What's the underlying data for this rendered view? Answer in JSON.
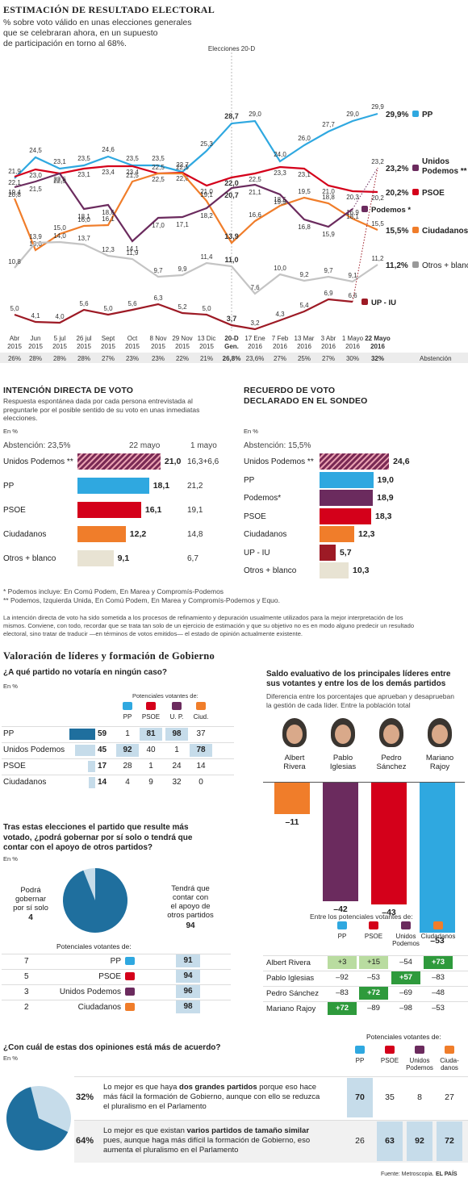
{
  "header": {
    "title": "ESTIMACIÓN DE RESULTADO ELECTORAL",
    "subtitle": [
      "% sobre voto válido en unas elecciones generales",
      "que se  celebraran ahora, en un supuesto",
      "de participación en torno al 68%."
    ]
  },
  "chart_data": [
    {
      "type": "line",
      "title": "ESTIMACIÓN DE RESULTADO ELECTORAL",
      "categories": [
        "Abr 2015",
        "Jun 2015",
        "5 jul 2015",
        "26 jul 2015",
        "Sept 2015",
        "Oct 2015",
        "8 Nov 2015",
        "29 Nov 2015",
        "13 Dic 2015",
        "20-D Gen.",
        "17 Ene 2016",
        "7 Feb 2016",
        "13 Mar 2016",
        "3 Abr 2016",
        "1 Mayo 2016",
        "22 Mayo 2016"
      ],
      "annotation": "Elecciones 20-D",
      "series": [
        {
          "name": "PP",
          "color": "#2fa8e0",
          "values": [
            21.9,
            24.5,
            23.1,
            23.5,
            24.6,
            23.5,
            23.5,
            22.7,
            25.3,
            28.7,
            29.0,
            24.0,
            26.0,
            27.7,
            29.0,
            29.9
          ],
          "end_label": "29,9%"
        },
        {
          "name": "PSOE",
          "color": "#d4001a",
          "values": [
            22.1,
            23.0,
            22.5,
            23.1,
            23.4,
            23.4,
            22.5,
            22.6,
            21.0,
            22.0,
            22.5,
            23.3,
            23.1,
            21.0,
            20.3,
            20.2
          ],
          "end_label": "20,2%"
        },
        {
          "name": "Ciudadanos",
          "color": "#f07d2a",
          "values": [
            19.4,
            13.0,
            15.0,
            16.0,
            16.1,
            21.5,
            22.5,
            22.5,
            19.1,
            13.9,
            16.6,
            18.5,
            19.5,
            18.8,
            16.9,
            15.5
          ],
          "end_label": "15,5%"
        },
        {
          "name": "Podemos",
          "color": "#6b2b5e",
          "values": [
            20.8,
            21.5,
            22.5,
            18.1,
            18.6,
            14.1,
            17.0,
            17.1,
            18.2,
            20.7,
            21.1,
            19.9,
            16.8,
            15.9,
            18.1,
            null
          ],
          "end_label": ""
        },
        {
          "name": "Unidos Podemos",
          "color": "#6b2b5e",
          "values": [
            null,
            null,
            null,
            null,
            null,
            null,
            null,
            null,
            null,
            null,
            null,
            null,
            null,
            null,
            null,
            23.2
          ],
          "end_label": "23,2%"
        },
        {
          "name": "Otros + blanco",
          "color": "#c4c4c4",
          "values": [
            10.8,
            13.9,
            14.0,
            13.7,
            12.3,
            11.9,
            9.7,
            9.9,
            11.4,
            11.0,
            7.6,
            10.0,
            9.2,
            9.7,
            9.1,
            11.2
          ],
          "end_label": "11,2%"
        },
        {
          "name": "UP - IU",
          "color": "#9d1a25",
          "values": [
            5.0,
            4.1,
            4.0,
            5.6,
            5.0,
            5.6,
            6.3,
            5.2,
            5.0,
            3.7,
            3.2,
            4.3,
            5.4,
            6.9,
            6.6,
            null
          ],
          "end_label": ""
        }
      ],
      "abstention_label": "Abstención",
      "abstention": [
        "26%",
        "28%",
        "28%",
        "28%",
        "27%",
        "23%",
        "23%",
        "22%",
        "21%",
        "26,8%",
        "23,6%",
        "27%",
        "25%",
        "27%",
        "30%",
        "32%"
      ]
    }
  ],
  "legend_labels": {
    "pp": "PP",
    "unidos": "Unidos",
    "unidos2": "Podemos **",
    "psoe": "PSOE",
    "podemos": "Podemos *",
    "ciud": "Ciudadanos",
    "otros": "Otros + blanco",
    "upiu": "UP - IU"
  },
  "intencion": {
    "title": "INTENCIÓN DIRECTA DE VOTO",
    "desc": [
      "Respuesta espontánea dada por cada persona entrevistada al",
      "preguntarle por el posible sentido de su voto en unas inmediatas",
      "elecciones."
    ],
    "unit": "En %",
    "abst": "Abstención: 23,5%",
    "col1": "22 mayo",
    "col2": "1 mayo",
    "rows": [
      {
        "name": "Unidos Podemos **",
        "value": "21,0",
        "v": 21.0,
        "prev": "16,3+6,6",
        "color": "hatch"
      },
      {
        "name": "PP",
        "value": "18,1",
        "v": 18.1,
        "prev": "21,2",
        "color": "#2fa8e0"
      },
      {
        "name": "PSOE",
        "value": "16,1",
        "v": 16.1,
        "prev": "19,1",
        "color": "#d4001a"
      },
      {
        "name": "Ciudadanos",
        "value": "12,2",
        "v": 12.2,
        "prev": "14,8",
        "color": "#f07d2a"
      },
      {
        "name": "Otros + blanco",
        "value": "9,1",
        "v": 9.1,
        "prev": "6,7",
        "color": "#e8e3d3"
      }
    ]
  },
  "recuerdo": {
    "title": [
      "RECUERDO DE VOTO",
      "DECLARADO EN EL SONDEO"
    ],
    "unit": "En %",
    "abst": "Abstención: 15,5%",
    "rows": [
      {
        "name": "Unidos Podemos **",
        "value": "24,6",
        "v": 24.6,
        "color": "hatch"
      },
      {
        "name": "PP",
        "value": "19,0",
        "v": 19.0,
        "color": "#2fa8e0"
      },
      {
        "name": "Podemos*",
        "value": "18,9",
        "v": 18.9,
        "color": "#6b2b5e"
      },
      {
        "name": "PSOE",
        "value": "18,3",
        "v": 18.3,
        "color": "#d4001a"
      },
      {
        "name": "Ciudadanos",
        "value": "12,3",
        "v": 12.3,
        "color": "#f07d2a"
      },
      {
        "name": "UP - IU",
        "value": "5,7",
        "v": 5.7,
        "color": "#9d1a25"
      },
      {
        "name": "Otros + blanco",
        "value": "10,3",
        "v": 10.3,
        "color": "#e8e3d3"
      }
    ]
  },
  "notes": [
    "* Podemos incluye: En Comú Podem, En Marea y Compromís-Podemos",
    "** Podemos, Izquierda Unida, En Comú Podem, En Marea y Compromís-Podemos y Equo."
  ],
  "methodology": [
    "La intención directa de voto ha sido sometida a los procesos de refinamiento y depuración usualmente utilizados para la mejor interpretación de los",
    "mismos. Conviene, con todo, recordar que se trata tan solo de un ejercicio de estimación y que su objetivo no es en modo alguno predecir un resultado",
    "electoral, sino tratar de traducir —en términos de votos emitidos— el estado de opinión actualmente existente."
  ],
  "lideres": {
    "title": "Valoración de líderes y formación de Gobierno"
  },
  "nunca": {
    "question": "¿A qué partido no votaría en ningún caso?",
    "unit": "En %",
    "pv": "Potenciales votantes de:",
    "cols": [
      "PP",
      "PSOE",
      "U. P.",
      "Ciud."
    ],
    "rows": [
      {
        "name": "PP",
        "v": 59,
        "vals": [
          "1",
          "81",
          "98",
          "37"
        ]
      },
      {
        "name": "Unidos Podemos",
        "v": 45,
        "vals": [
          "92",
          "40",
          "1",
          "78"
        ]
      },
      {
        "name": "PSOE",
        "v": 17,
        "vals": [
          "28",
          "1",
          "24",
          "14"
        ]
      },
      {
        "name": "Ciudadanos",
        "v": 14,
        "vals": [
          "4",
          "9",
          "32",
          "0"
        ]
      }
    ]
  },
  "saldo": {
    "title": [
      "Saldo evaluativo de los principales líderes entre",
      "sus votantes y entre los de los demás partidos"
    ],
    "desc": [
      "Diferencia entre los porcentajes que aprueban y desaprueban",
      "la gestión de cada líder. Entre la población total"
    ],
    "leaders": [
      {
        "name": [
          "Albert",
          "Rivera"
        ],
        "value": "–11",
        "v": -11,
        "color": "#f07d2a"
      },
      {
        "name": [
          "Pablo",
          "Iglesias"
        ],
        "value": "–42",
        "v": -42,
        "color": "#6b2b5e"
      },
      {
        "name": [
          "Pedro",
          "Sánchez"
        ],
        "value": "–43",
        "v": -43,
        "color": "#d4001a"
      },
      {
        "name": [
          "Mariano",
          "Rajoy"
        ],
        "value": "–53",
        "v": -53,
        "color": "#2fa8e0"
      }
    ],
    "pv": "Entre los potenciales votantes de:",
    "cols": [
      "PP",
      "PSOE",
      "Unidos",
      "Podemos",
      "Ciudadanos"
    ],
    "rows": [
      {
        "name": "Albert Rivera",
        "vals": [
          "+3",
          "+15",
          "–54",
          "+73"
        ]
      },
      {
        "name": "Pablo Iglesias",
        "vals": [
          "–92",
          "–53",
          "+57",
          "–83"
        ]
      },
      {
        "name": "Pedro Sánchez",
        "vals": [
          "–83",
          "+72",
          "–69",
          "–48"
        ]
      },
      {
        "name": "Mariano Rajoy",
        "vals": [
          "+72",
          "–89",
          "–98",
          "–53"
        ]
      }
    ]
  },
  "gobernar": {
    "question": [
      "Tras estas elecciones el partido que resulte más",
      "votado, ¿podrá gobernar por sí solo o tendrá que",
      "contar con el apoyo de otros partidos?"
    ],
    "unit": "En %",
    "left": [
      "Podrá",
      "gobernar",
      "por sí solo"
    ],
    "left_v": "4",
    "right": [
      "Tendrá que",
      "contar con",
      "el apoyo de",
      "otros partidos"
    ],
    "right_v": "94",
    "pv": "Potenciales votantes de:",
    "rows": [
      {
        "a": "7",
        "name": "PP",
        "b": "91"
      },
      {
        "a": "5",
        "name": "PSOE",
        "b": "94"
      },
      {
        "a": "3",
        "name": "Unidos Podemos",
        "b": "96"
      },
      {
        "a": "2",
        "name": "Ciudadanos",
        "b": "98"
      }
    ]
  },
  "opiniones": {
    "question": "¿Con cuál de estas dos opiniones está más de acuerdo?",
    "unit": "En %",
    "pv": "Potenciales votantes de:",
    "cols": [
      "PP",
      "PSOE",
      "Unidos",
      "Podemos",
      "Ciuda-",
      "danos"
    ],
    "rows": [
      {
        "pct": "32%",
        "pre": "Lo mejor es que haya ",
        "strong": "dos grandes partidos",
        "post": " porque eso hace más fácil la formación de Gobierno, aunque con ello se reduzca el pluralismo en el Parlamento",
        "vals": [
          "70",
          "35",
          "8",
          "27"
        ]
      },
      {
        "pct": "64%",
        "pre": "Lo mejor es que existan ",
        "strong": "varios partidos de tamaño similar",
        "post": " pues, aunque haga más difícil la formación de Gobierno, eso aumenta el pluralismo en el Parlamento",
        "vals": [
          "26",
          "63",
          "92",
          "72"
        ]
      }
    ]
  },
  "footer": {
    "source": "Fuente: Metroscopia.",
    "brand": "EL PAÍS"
  }
}
